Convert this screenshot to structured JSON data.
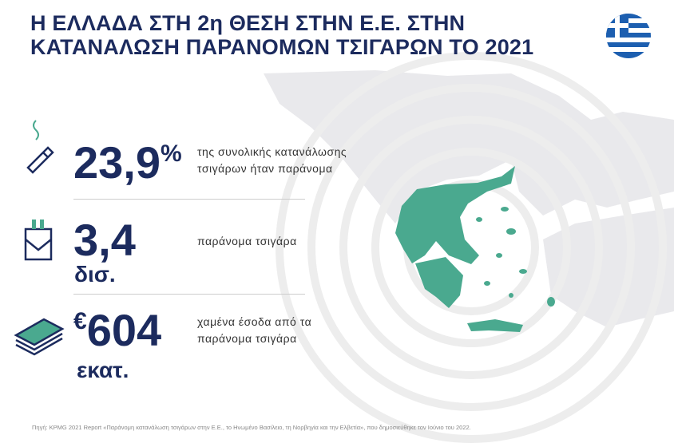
{
  "header": {
    "title": [
      "Η ΕΛΛΑΔΑ ΣΤΗ 2η ΘΕΣΗ ΣΤΗΝ Ε.Ε. ΣΤΗΝ",
      "ΚΑΤΑΝΑΛΩΣΗ ΠΑΡΑΝΟΜΩΝ ΤΣΙΓΑΡΩΝ ΤΟ 2021"
    ]
  },
  "stats": [
    {
      "value": "23,9",
      "suffix": "%",
      "description": [
        "της συνολικής κατανάλωσης",
        "τσιγάρων ήταν παράνομα"
      ]
    },
    {
      "value": "3,4",
      "unit": "δισ.",
      "description": [
        "παράνομα τσιγάρα"
      ]
    },
    {
      "prefix": "€",
      "value": "604",
      "unit": "εκατ.",
      "description": [
        "χαμένα έσοδα από τα",
        "παράνομα τσιγάρα"
      ]
    }
  ],
  "footnote": "Πηγή: KPMG 2021 Report «Παράνομη κατανάλωση τσιγάρων στην Ε.Ε., το Ηνωμένο Βασίλειο, τη Νορβηγία και την Ελβετία», που δημοσιεύθηκε τον Ιούνιο του 2022."
}
